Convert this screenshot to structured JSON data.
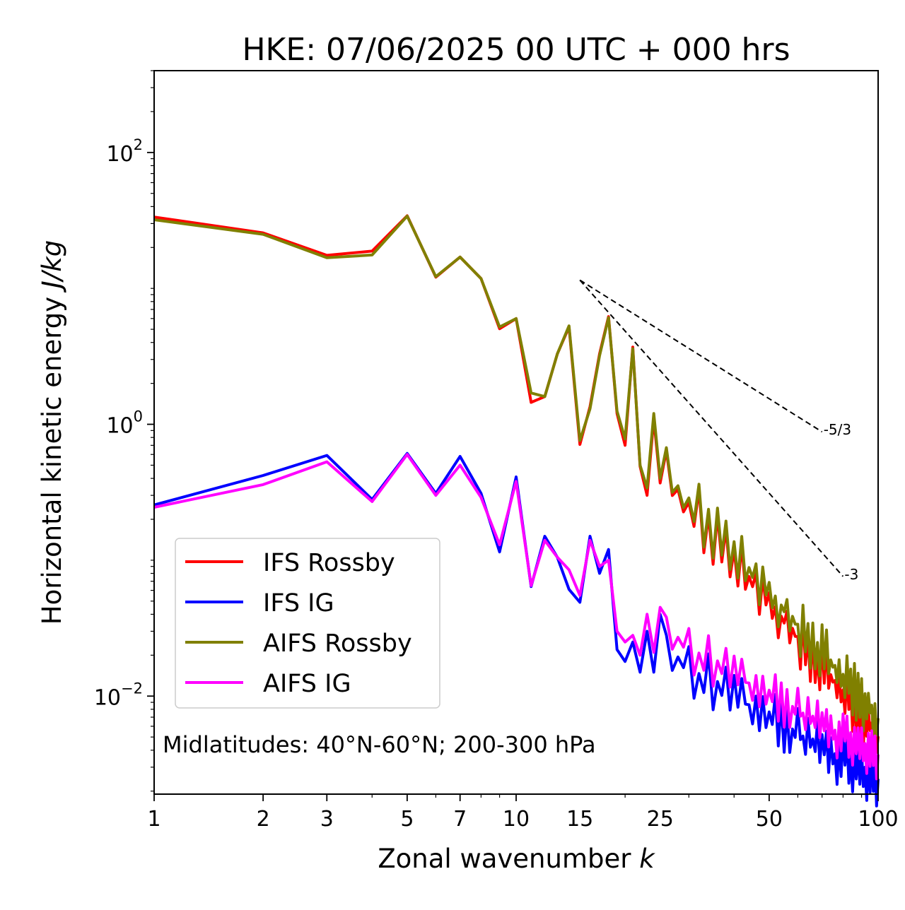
{
  "chart_data": {
    "type": "line",
    "title": "HKE: 07/06/2025 00 UTC + 000 hrs",
    "xlabel": "Zonal wavenumber k",
    "xlabel_main": "Zonal wavenumber ",
    "xlabel_var": "k",
    "ylabel_main": "Horizontal kinetic energy ",
    "ylabel_unit": "J/kg",
    "xscale": "log",
    "yscale": "log",
    "xlim": [
      1,
      100
    ],
    "ylim": [
      0.0019,
      400
    ],
    "xticks": [
      1,
      2,
      3,
      5,
      7,
      10,
      15,
      25,
      50,
      100
    ],
    "xtick_labels": [
      "1",
      "2",
      "3",
      "5",
      "7",
      "10",
      "15",
      "25",
      "50",
      "100"
    ],
    "yticks": [
      0.01,
      1,
      100
    ],
    "ytick_base": "10",
    "ytick_exponents": [
      "−2",
      "0",
      "2"
    ],
    "grid": false,
    "legend_position": "lower-left",
    "annotation": "Midlatitudes: 40°N-60°N; 200-300 hPa",
    "reference_lines": [
      {
        "label": "-5/3",
        "slope": -1.6667,
        "x": [
          15,
          70
        ],
        "y": [
          11.5,
          0.88
        ]
      },
      {
        "label": "-3",
        "slope": -3,
        "x": [
          15,
          80
        ],
        "y": [
          11.5,
          0.076
        ]
      }
    ],
    "x_base": [
      1,
      2,
      3,
      4,
      5,
      6,
      7,
      8,
      9,
      10,
      11,
      12,
      13,
      14,
      15,
      16,
      17,
      18,
      19,
      20,
      21,
      22,
      23,
      24,
      25
    ],
    "x_tail_start": 26,
    "x_tail_end": 100,
    "series": [
      {
        "name": "IFS Rossby",
        "color": "#ff0000",
        "base": [
          33.5,
          25.6,
          17.5,
          18.8,
          34.2,
          12.1,
          17.0,
          11.8,
          5.05,
          6.0,
          1.45,
          1.6,
          3.3,
          5.2,
          0.71,
          1.35,
          3.3,
          6.2,
          1.2,
          0.7,
          3.7,
          0.49,
          0.3,
          1.1,
          0.37
        ],
        "tail_start": 0.4,
        "tail_end": 0.005,
        "wiggle": 0.11
      },
      {
        "name": "IFS IG",
        "color": "#0000ff",
        "base": [
          0.255,
          0.42,
          0.59,
          0.28,
          0.61,
          0.31,
          0.58,
          0.31,
          0.115,
          0.41,
          0.064,
          0.15,
          0.105,
          0.061,
          0.049,
          0.15,
          0.08,
          0.12,
          0.022,
          0.018,
          0.025,
          0.015,
          0.03,
          0.015,
          0.04
        ],
        "tail_start": 0.02,
        "tail_end": 0.0023,
        "wiggle": 0.1
      },
      {
        "name": "AIFS Rossby",
        "color": "#808000",
        "base": [
          32.0,
          25.0,
          16.8,
          17.6,
          34.0,
          12.2,
          17.0,
          11.8,
          5.2,
          6.0,
          1.7,
          1.6,
          3.3,
          5.3,
          0.76,
          1.3,
          3.2,
          6.1,
          1.25,
          0.78,
          3.6,
          0.5,
          0.34,
          1.2,
          0.4
        ],
        "tail_start": 0.42,
        "tail_end": 0.0068,
        "wiggle": 0.11
      },
      {
        "name": "AIFS IG",
        "color": "#ff00ff",
        "base": [
          0.245,
          0.36,
          0.53,
          0.27,
          0.6,
          0.3,
          0.5,
          0.29,
          0.13,
          0.38,
          0.065,
          0.14,
          0.105,
          0.085,
          0.055,
          0.14,
          0.09,
          0.1,
          0.03,
          0.025,
          0.028,
          0.02,
          0.04,
          0.021,
          0.045
        ],
        "tail_start": 0.028,
        "tail_end": 0.0035,
        "wiggle": 0.09
      }
    ]
  }
}
